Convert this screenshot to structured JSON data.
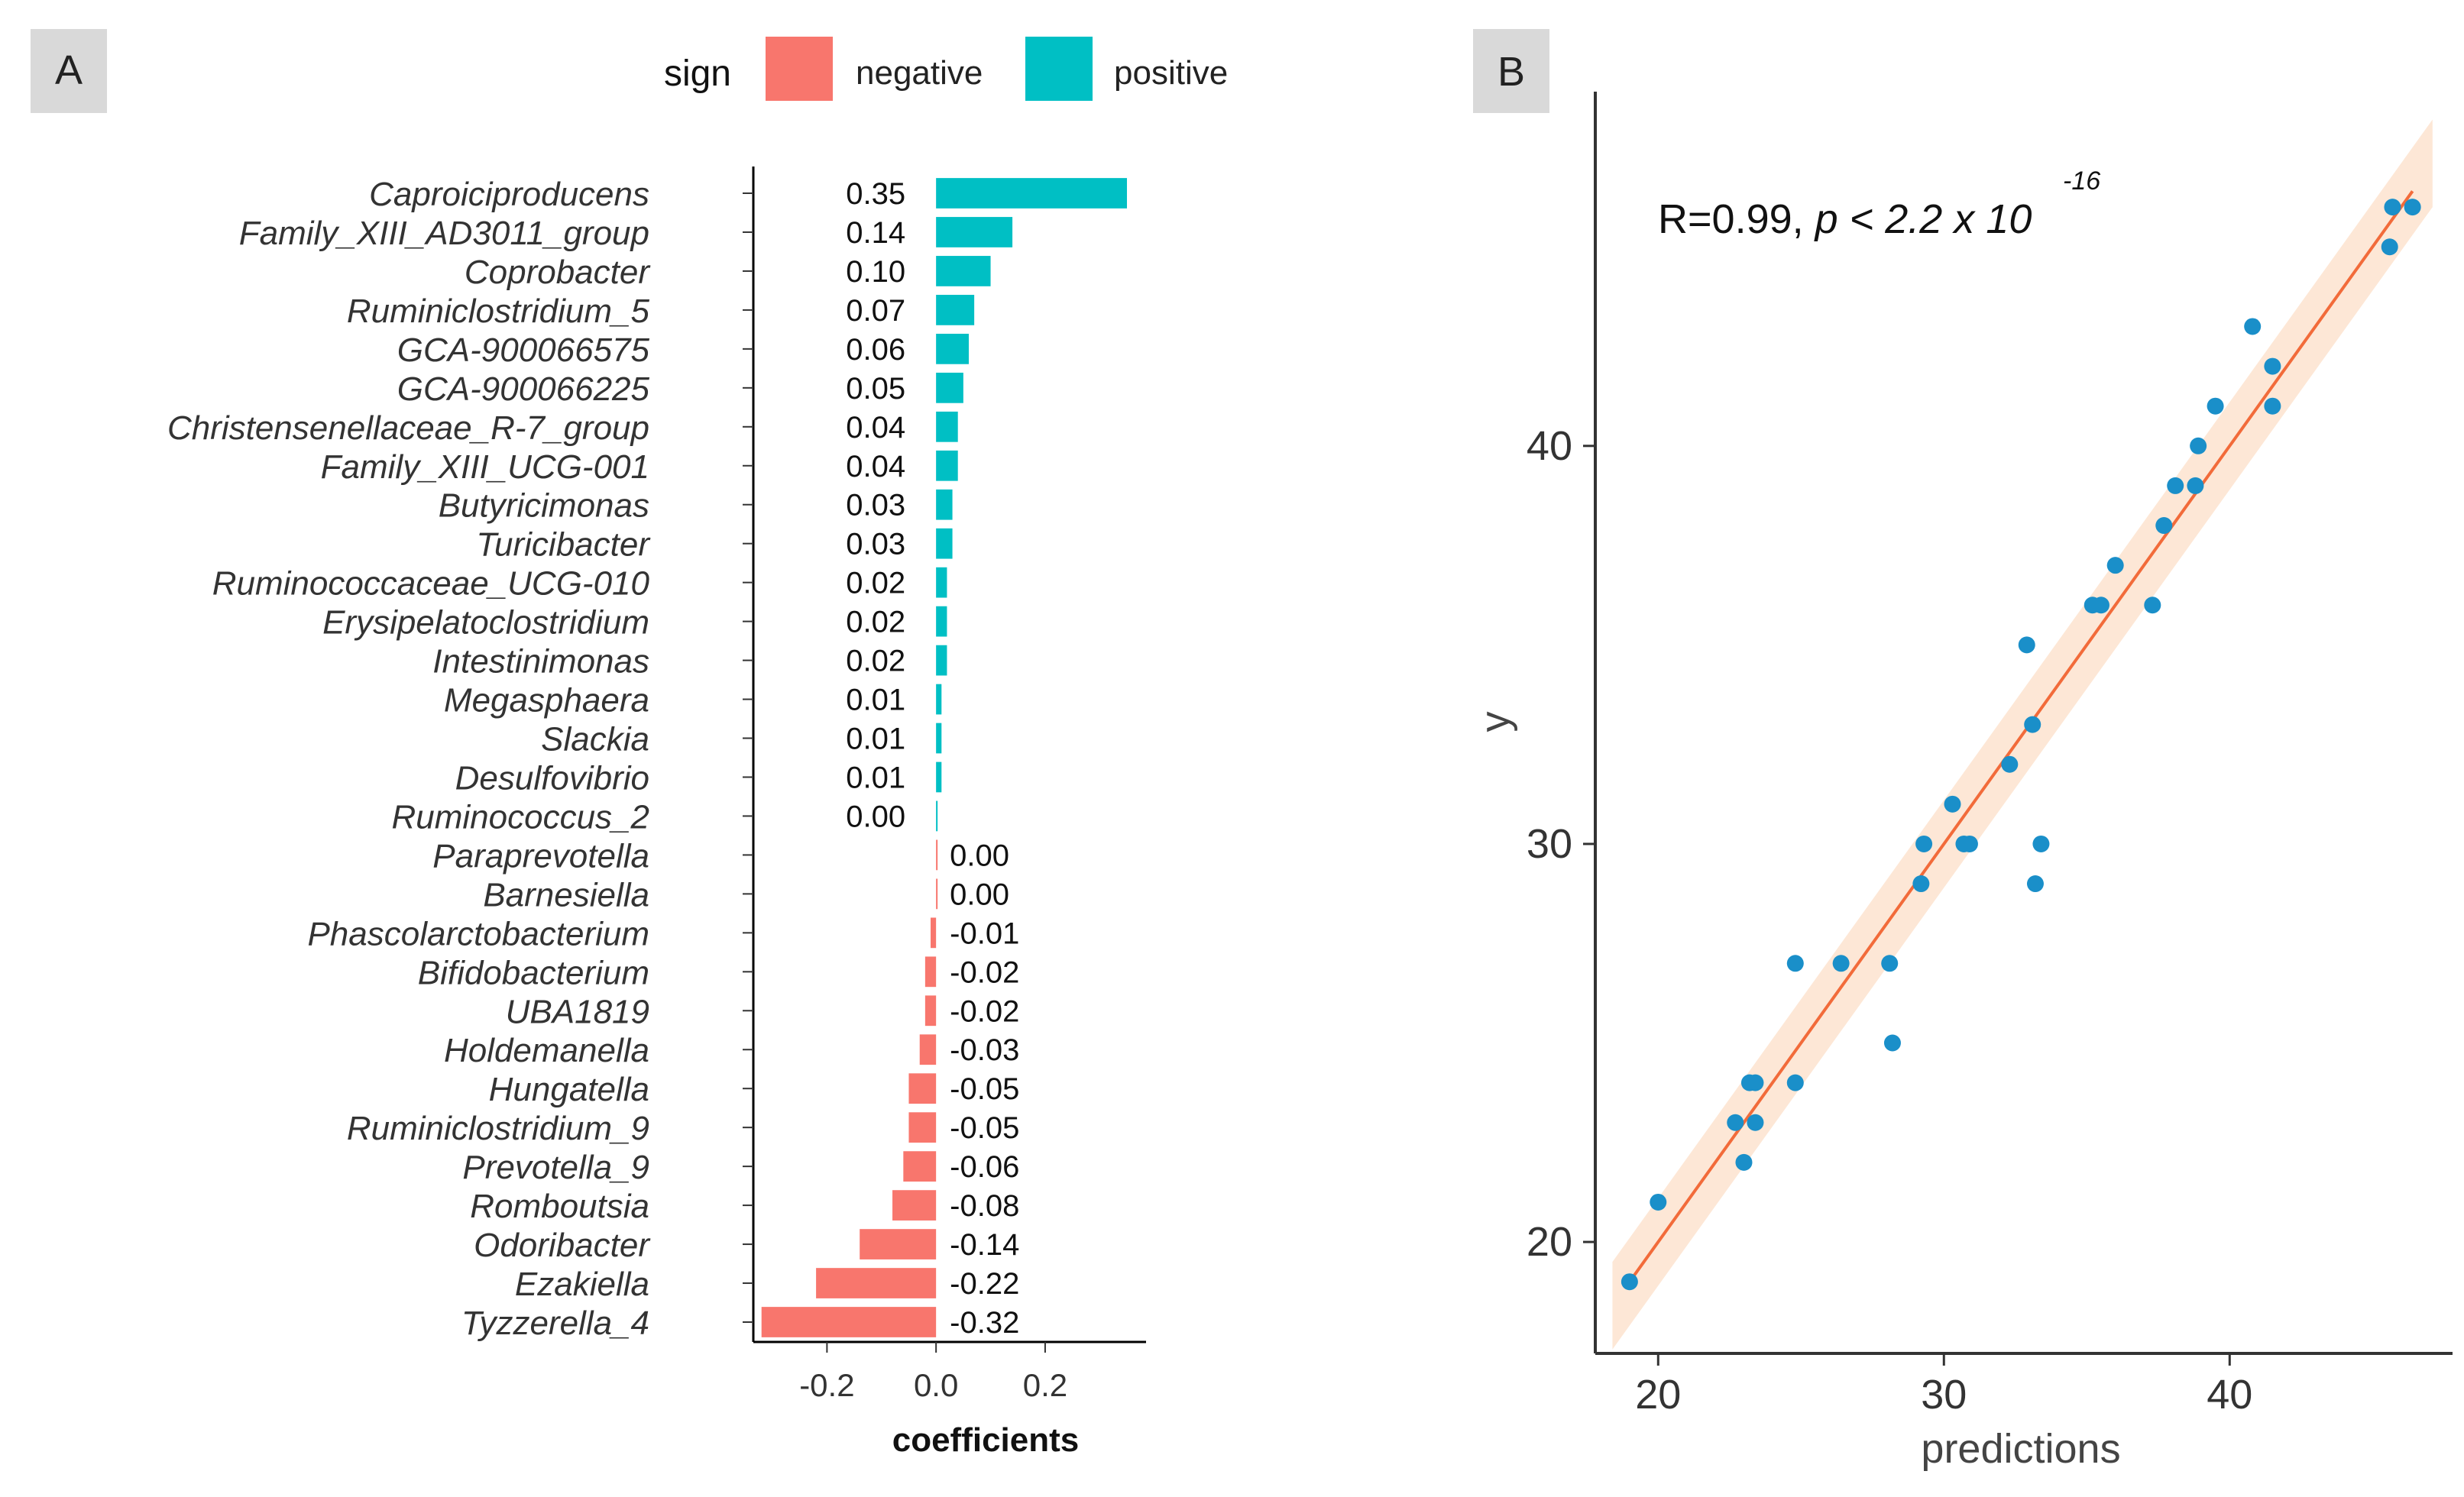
{
  "panel_a": {
    "label": "A",
    "legend": {
      "title": "sign",
      "items": [
        {
          "name": "negative",
          "color": "#F8766D"
        },
        {
          "name": "positive",
          "color": "#00BFC4"
        }
      ]
    }
  },
  "panel_b": {
    "label": "B",
    "annotation": {
      "prefix": "R=0.99, ",
      "p_text": "p < 2.2 x 10",
      "exponent": "-16"
    }
  },
  "chart_data": [
    {
      "type": "bar",
      "orientation": "horizontal",
      "xlabel": "coefficients",
      "ylabel": "",
      "xlim": [
        -0.335,
        0.385
      ],
      "xticks": [
        -0.2,
        0.0,
        0.2
      ],
      "xtick_labels": [
        "-0.2",
        "0.0",
        "0.2"
      ],
      "legend_title": "sign",
      "categories": [
        "Caproiciproducens",
        "Family_XIII_AD3011_group",
        "Coprobacter",
        "Ruminiclostridium_5",
        "GCA-900066575",
        "GCA-900066225",
        "Christensenellaceae_R-7_group",
        "Family_XIII_UCG-001",
        "Butyricimonas",
        "Turicibacter",
        "Ruminococcaceae_UCG-010",
        "Erysipelatoclostridium",
        "Intestinimonas",
        "Megasphaera",
        "Slackia",
        "Desulfovibrio",
        "Ruminococcus_2",
        "Paraprevotella",
        "Barnesiella",
        "Phascolarctobacterium",
        "Bifidobacterium",
        "UBA1819",
        "Holdemanella",
        "Hungatella",
        "Ruminiclostridium_9",
        "Prevotella_9",
        "Romboutsia",
        "Odoribacter",
        "Ezakiella",
        "Tyzzerella_4"
      ],
      "values": [
        0.35,
        0.14,
        0.1,
        0.07,
        0.06,
        0.05,
        0.04,
        0.04,
        0.03,
        0.03,
        0.02,
        0.02,
        0.02,
        0.01,
        0.01,
        0.01,
        0.0,
        0.0,
        0.0,
        -0.01,
        -0.02,
        -0.02,
        -0.03,
        -0.05,
        -0.05,
        -0.06,
        -0.08,
        -0.14,
        -0.22,
        -0.32
      ],
      "value_labels": [
        "0.35",
        "0.14",
        "0.10",
        "0.07",
        "0.06",
        "0.05",
        "0.04",
        "0.04",
        "0.03",
        "0.03",
        "0.02",
        "0.02",
        "0.02",
        "0.01",
        "0.01",
        "0.01",
        "0.00",
        "0.00",
        "0.00",
        "-0.01",
        "-0.02",
        "-0.02",
        "-0.03",
        "-0.05",
        "-0.05",
        "-0.06",
        "-0.08",
        "-0.14",
        "-0.22",
        "-0.32"
      ],
      "signs": [
        "positive",
        "positive",
        "positive",
        "positive",
        "positive",
        "positive",
        "positive",
        "positive",
        "positive",
        "positive",
        "positive",
        "positive",
        "positive",
        "positive",
        "positive",
        "positive",
        "positive",
        "negative",
        "negative",
        "negative",
        "negative",
        "negative",
        "negative",
        "negative",
        "negative",
        "negative",
        "negative",
        "negative",
        "negative",
        "negative"
      ],
      "colors": {
        "positive": "#00BFC4",
        "negative": "#F8766D"
      }
    },
    {
      "type": "scatter",
      "xlabel": "predictions",
      "ylabel": "y",
      "xlim": [
        17.8,
        47.8
      ],
      "ylim": [
        17.2,
        48.9
      ],
      "xticks": [
        20,
        30,
        40
      ],
      "yticks": [
        20,
        30,
        40
      ],
      "point_color": "#1A8FC9",
      "fit_line": {
        "color": "#F26B3A",
        "band_color": "#FDE3CF",
        "x": [
          19,
          46.4
        ],
        "y": [
          19,
          46.4
        ]
      },
      "points": [
        {
          "x": 19.0,
          "y": 19
        },
        {
          "x": 20.0,
          "y": 21
        },
        {
          "x": 22.7,
          "y": 23
        },
        {
          "x": 23.0,
          "y": 22
        },
        {
          "x": 23.2,
          "y": 24
        },
        {
          "x": 23.4,
          "y": 24
        },
        {
          "x": 23.4,
          "y": 23
        },
        {
          "x": 24.8,
          "y": 27
        },
        {
          "x": 24.8,
          "y": 24
        },
        {
          "x": 26.4,
          "y": 27
        },
        {
          "x": 28.1,
          "y": 27
        },
        {
          "x": 28.2,
          "y": 25
        },
        {
          "x": 29.2,
          "y": 29
        },
        {
          "x": 29.3,
          "y": 30
        },
        {
          "x": 30.3,
          "y": 31
        },
        {
          "x": 30.7,
          "y": 30
        },
        {
          "x": 30.9,
          "y": 30
        },
        {
          "x": 32.3,
          "y": 32
        },
        {
          "x": 32.9,
          "y": 35
        },
        {
          "x": 33.1,
          "y": 33
        },
        {
          "x": 33.2,
          "y": 29
        },
        {
          "x": 33.4,
          "y": 30
        },
        {
          "x": 35.2,
          "y": 36
        },
        {
          "x": 35.5,
          "y": 36
        },
        {
          "x": 36.0,
          "y": 37
        },
        {
          "x": 37.3,
          "y": 36
        },
        {
          "x": 37.7,
          "y": 38
        },
        {
          "x": 38.1,
          "y": 39
        },
        {
          "x": 38.8,
          "y": 39
        },
        {
          "x": 38.9,
          "y": 40
        },
        {
          "x": 39.5,
          "y": 41
        },
        {
          "x": 40.8,
          "y": 43
        },
        {
          "x": 41.5,
          "y": 42
        },
        {
          "x": 41.5,
          "y": 41
        },
        {
          "x": 45.6,
          "y": 45
        },
        {
          "x": 45.7,
          "y": 46
        },
        {
          "x": 46.4,
          "y": 46
        }
      ]
    }
  ]
}
